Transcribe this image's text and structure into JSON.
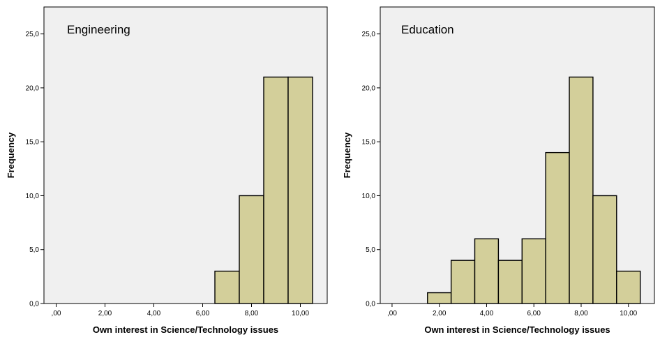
{
  "chart_data": [
    {
      "type": "bar",
      "title": "Engineering",
      "xlabel": "Own interest in Science/Technology issues",
      "ylabel": "Frequency",
      "x_ticks": [
        ",00",
        "2,00",
        "4,00",
        "6,00",
        "8,00",
        "10,00"
      ],
      "x_tick_values": [
        0,
        2,
        4,
        6,
        8,
        10
      ],
      "y_ticks": [
        "0,0",
        "5,0",
        "10,0",
        "15,0",
        "20,0",
        "25,0"
      ],
      "y_tick_values": [
        0,
        5,
        10,
        15,
        20,
        25
      ],
      "xlim": [
        -0.5,
        11.1
      ],
      "ylim": [
        0,
        27.5
      ],
      "bin_width": 1,
      "bin_centers": [
        7,
        8,
        9,
        10
      ],
      "values": [
        3,
        10,
        21,
        21
      ],
      "bar_color": "#d3cf9a",
      "plot_background": "#f0f0f0",
      "grid": false
    },
    {
      "type": "bar",
      "title": "Education",
      "xlabel": "Own interest in Science/Technology issues",
      "ylabel": "Frequency",
      "x_ticks": [
        ",00",
        "2,00",
        "4,00",
        "6,00",
        "8,00",
        "10,00"
      ],
      "x_tick_values": [
        0,
        2,
        4,
        6,
        8,
        10
      ],
      "y_ticks": [
        "0,0",
        "5,0",
        "10,0",
        "15,0",
        "20,0",
        "25,0"
      ],
      "y_tick_values": [
        0,
        5,
        10,
        15,
        20,
        25
      ],
      "xlim": [
        -0.5,
        11.1
      ],
      "ylim": [
        0,
        27.5
      ],
      "bin_width": 1,
      "bin_centers": [
        2,
        3,
        4,
        5,
        6,
        7,
        8,
        9,
        10
      ],
      "values": [
        1,
        4,
        6,
        4,
        6,
        14,
        21,
        10,
        3
      ],
      "bar_color": "#d3cf9a",
      "plot_background": "#f0f0f0",
      "grid": false
    }
  ]
}
